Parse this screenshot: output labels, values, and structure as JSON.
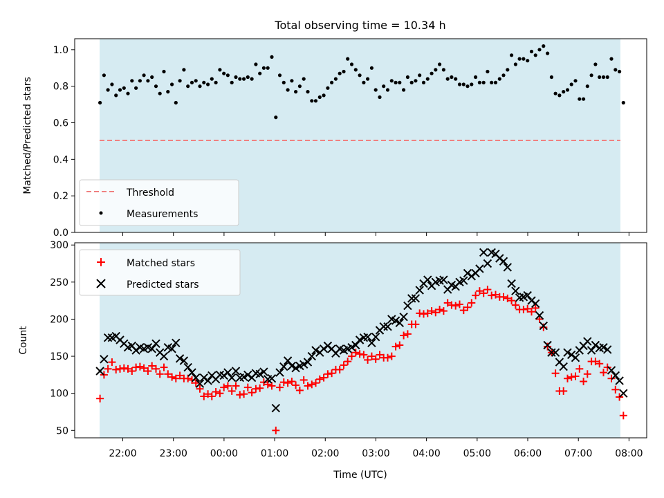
{
  "chart_data": [
    {
      "type": "scatter",
      "title": "Total observing time = 10.34 h",
      "xlabel": "",
      "ylabel": "Matched/Predicted stars",
      "ylim": [
        0,
        1.06
      ],
      "yticks": [
        0.0,
        0.2,
        0.4,
        0.6,
        0.8,
        1.0
      ],
      "ytick_labels": [
        "0.0",
        "0.2",
        "0.4",
        "0.6",
        "0.8",
        "1.0"
      ],
      "threshold": 0.5,
      "legend": "lower-left",
      "series": [
        {
          "name": "Threshold",
          "kind": "dashed-line",
          "color": "#f08080"
        },
        {
          "name": "Measurements",
          "kind": "dots",
          "color": "#000000",
          "values": [
            0.71,
            0.86,
            0.78,
            0.81,
            0.75,
            0.78,
            0.79,
            0.76,
            0.83,
            0.79,
            0.83,
            0.86,
            0.83,
            0.85,
            0.8,
            0.76,
            0.88,
            0.77,
            0.81,
            0.71,
            0.83,
            0.89,
            0.8,
            0.82,
            0.83,
            0.8,
            0.82,
            0.81,
            0.84,
            0.82,
            0.89,
            0.87,
            0.86,
            0.82,
            0.85,
            0.84,
            0.84,
            0.85,
            0.84,
            0.92,
            0.87,
            0.9,
            0.9,
            0.96,
            0.63,
            0.86,
            0.82,
            0.78,
            0.83,
            0.77,
            0.8,
            0.84,
            0.77,
            0.72,
            0.72,
            0.74,
            0.75,
            0.79,
            0.82,
            0.84,
            0.87,
            0.88,
            0.95,
            0.92,
            0.89,
            0.86,
            0.82,
            0.84,
            0.9,
            0.78,
            0.74,
            0.8,
            0.78,
            0.83,
            0.82,
            0.82,
            0.78,
            0.85,
            0.82,
            0.83,
            0.86,
            0.82,
            0.84,
            0.87,
            0.89,
            0.92,
            0.89,
            0.84,
            0.85,
            0.84,
            0.81,
            0.81,
            0.8,
            0.81,
            0.85,
            0.82,
            0.82,
            0.88,
            0.82,
            0.82,
            0.84,
            0.86,
            0.89,
            0.97,
            0.92,
            0.95,
            0.95,
            0.94,
            0.99,
            0.97,
            1.0,
            1.02,
            0.98,
            0.85,
            0.76,
            0.75,
            0.77,
            0.78,
            0.81,
            0.83,
            0.73,
            0.73,
            0.8,
            0.86,
            0.92,
            0.85,
            0.85,
            0.85,
            0.95,
            0.89,
            0.88,
            0.71
          ]
        }
      ]
    },
    {
      "type": "scatter",
      "xlabel": "Time (UTC)",
      "ylabel": "Count",
      "ylim": [
        40,
        303
      ],
      "yticks": [
        50,
        100,
        150,
        200,
        250,
        300
      ],
      "ytick_labels": [
        "50",
        "100",
        "150",
        "200",
        "250",
        "300"
      ],
      "x_range_hours": [
        21.55,
        31.89
      ],
      "xticks_hours": [
        22,
        23,
        24,
        25,
        26,
        27,
        28,
        29,
        30,
        31,
        32
      ],
      "xtick_labels": [
        "22:00",
        "23:00",
        "00:00",
        "01:00",
        "02:00",
        "03:00",
        "04:00",
        "05:00",
        "06:00",
        "07:00",
        "08:00"
      ],
      "legend": "top-left",
      "series": [
        {
          "name": "Matched stars",
          "marker": "plus",
          "color": "#ff0000",
          "values": [
            93,
            125,
            133,
            142,
            132,
            133,
            134,
            133,
            130,
            135,
            136,
            134,
            130,
            137,
            133,
            126,
            135,
            126,
            122,
            120,
            124,
            120,
            120,
            118,
            114,
            106,
            96,
            99,
            96,
            102,
            100,
            108,
            110,
            103,
            110,
            98,
            99,
            108,
            101,
            106,
            107,
            115,
            112,
            110,
            50,
            108,
            115,
            114,
            116,
            111,
            104,
            118,
            110,
            112,
            114,
            119,
            121,
            126,
            127,
            132,
            132,
            138,
            143,
            150,
            155,
            153,
            152,
            145,
            150,
            146,
            152,
            148,
            148,
            150,
            163,
            165,
            178,
            180,
            193,
            193,
            208,
            207,
            208,
            211,
            209,
            213,
            211,
            222,
            219,
            218,
            220,
            212,
            216,
            222,
            232,
            238,
            235,
            240,
            232,
            233,
            230,
            230,
            228,
            225,
            219,
            213,
            213,
            214,
            210,
            215,
            200,
            189,
            163,
            155,
            127,
            103,
            103,
            120,
            122,
            123,
            133,
            116,
            126,
            143,
            143,
            140,
            128,
            135,
            120,
            105,
            95,
            70
          ]
        },
        {
          "name": "Predicted stars",
          "marker": "x",
          "color": "#000000",
          "values": [
            130,
            146,
            175,
            175,
            177,
            172,
            167,
            162,
            164,
            158,
            162,
            160,
            162,
            160,
            167,
            155,
            150,
            162,
            160,
            168,
            147,
            144,
            135,
            128,
            121,
            113,
            121,
            117,
            124,
            119,
            125,
            124,
            128,
            121,
            130,
            121,
            122,
            125,
            121,
            127,
            126,
            129,
            119,
            120,
            80,
            128,
            136,
            144,
            137,
            134,
            137,
            139,
            142,
            150,
            158,
            155,
            160,
            164,
            160,
            154,
            160,
            158,
            160,
            162,
            165,
            172,
            175,
            176,
            168,
            176,
            185,
            190,
            190,
            200,
            198,
            195,
            203,
            218,
            228,
            228,
            239,
            248,
            253,
            245,
            250,
            252,
            253,
            240,
            246,
            244,
            250,
            252,
            262,
            258,
            262,
            268,
            290,
            275,
            290,
            288,
            282,
            278,
            270,
            248,
            238,
            229,
            230,
            232,
            225,
            221,
            205,
            191,
            165,
            155,
            155,
            142,
            136,
            155,
            152,
            148,
            158,
            164,
            170,
            158,
            165,
            161,
            162,
            159,
            131,
            124,
            117,
            100
          ]
        }
      ]
    }
  ]
}
